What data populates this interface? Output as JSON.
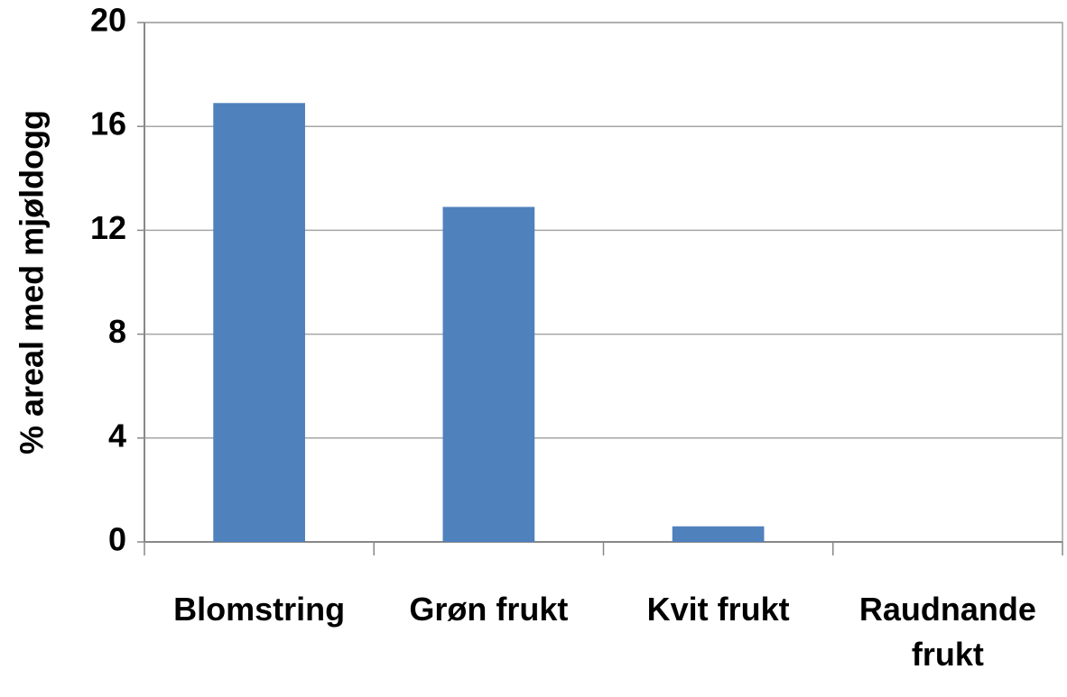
{
  "chart_data": {
    "type": "bar",
    "y_label": "% areal med mjøldogg",
    "categories": [
      "Blomstring",
      "Grøn frukt",
      "Kvit frukt",
      "Raudnande frukt"
    ],
    "values": [
      16.9,
      12.9,
      0.6,
      0
    ],
    "color": "#4f81bd",
    "ylim": [
      0,
      20
    ],
    "yticks": [
      0,
      4,
      8,
      12,
      16,
      20
    ],
    "grid": true
  }
}
